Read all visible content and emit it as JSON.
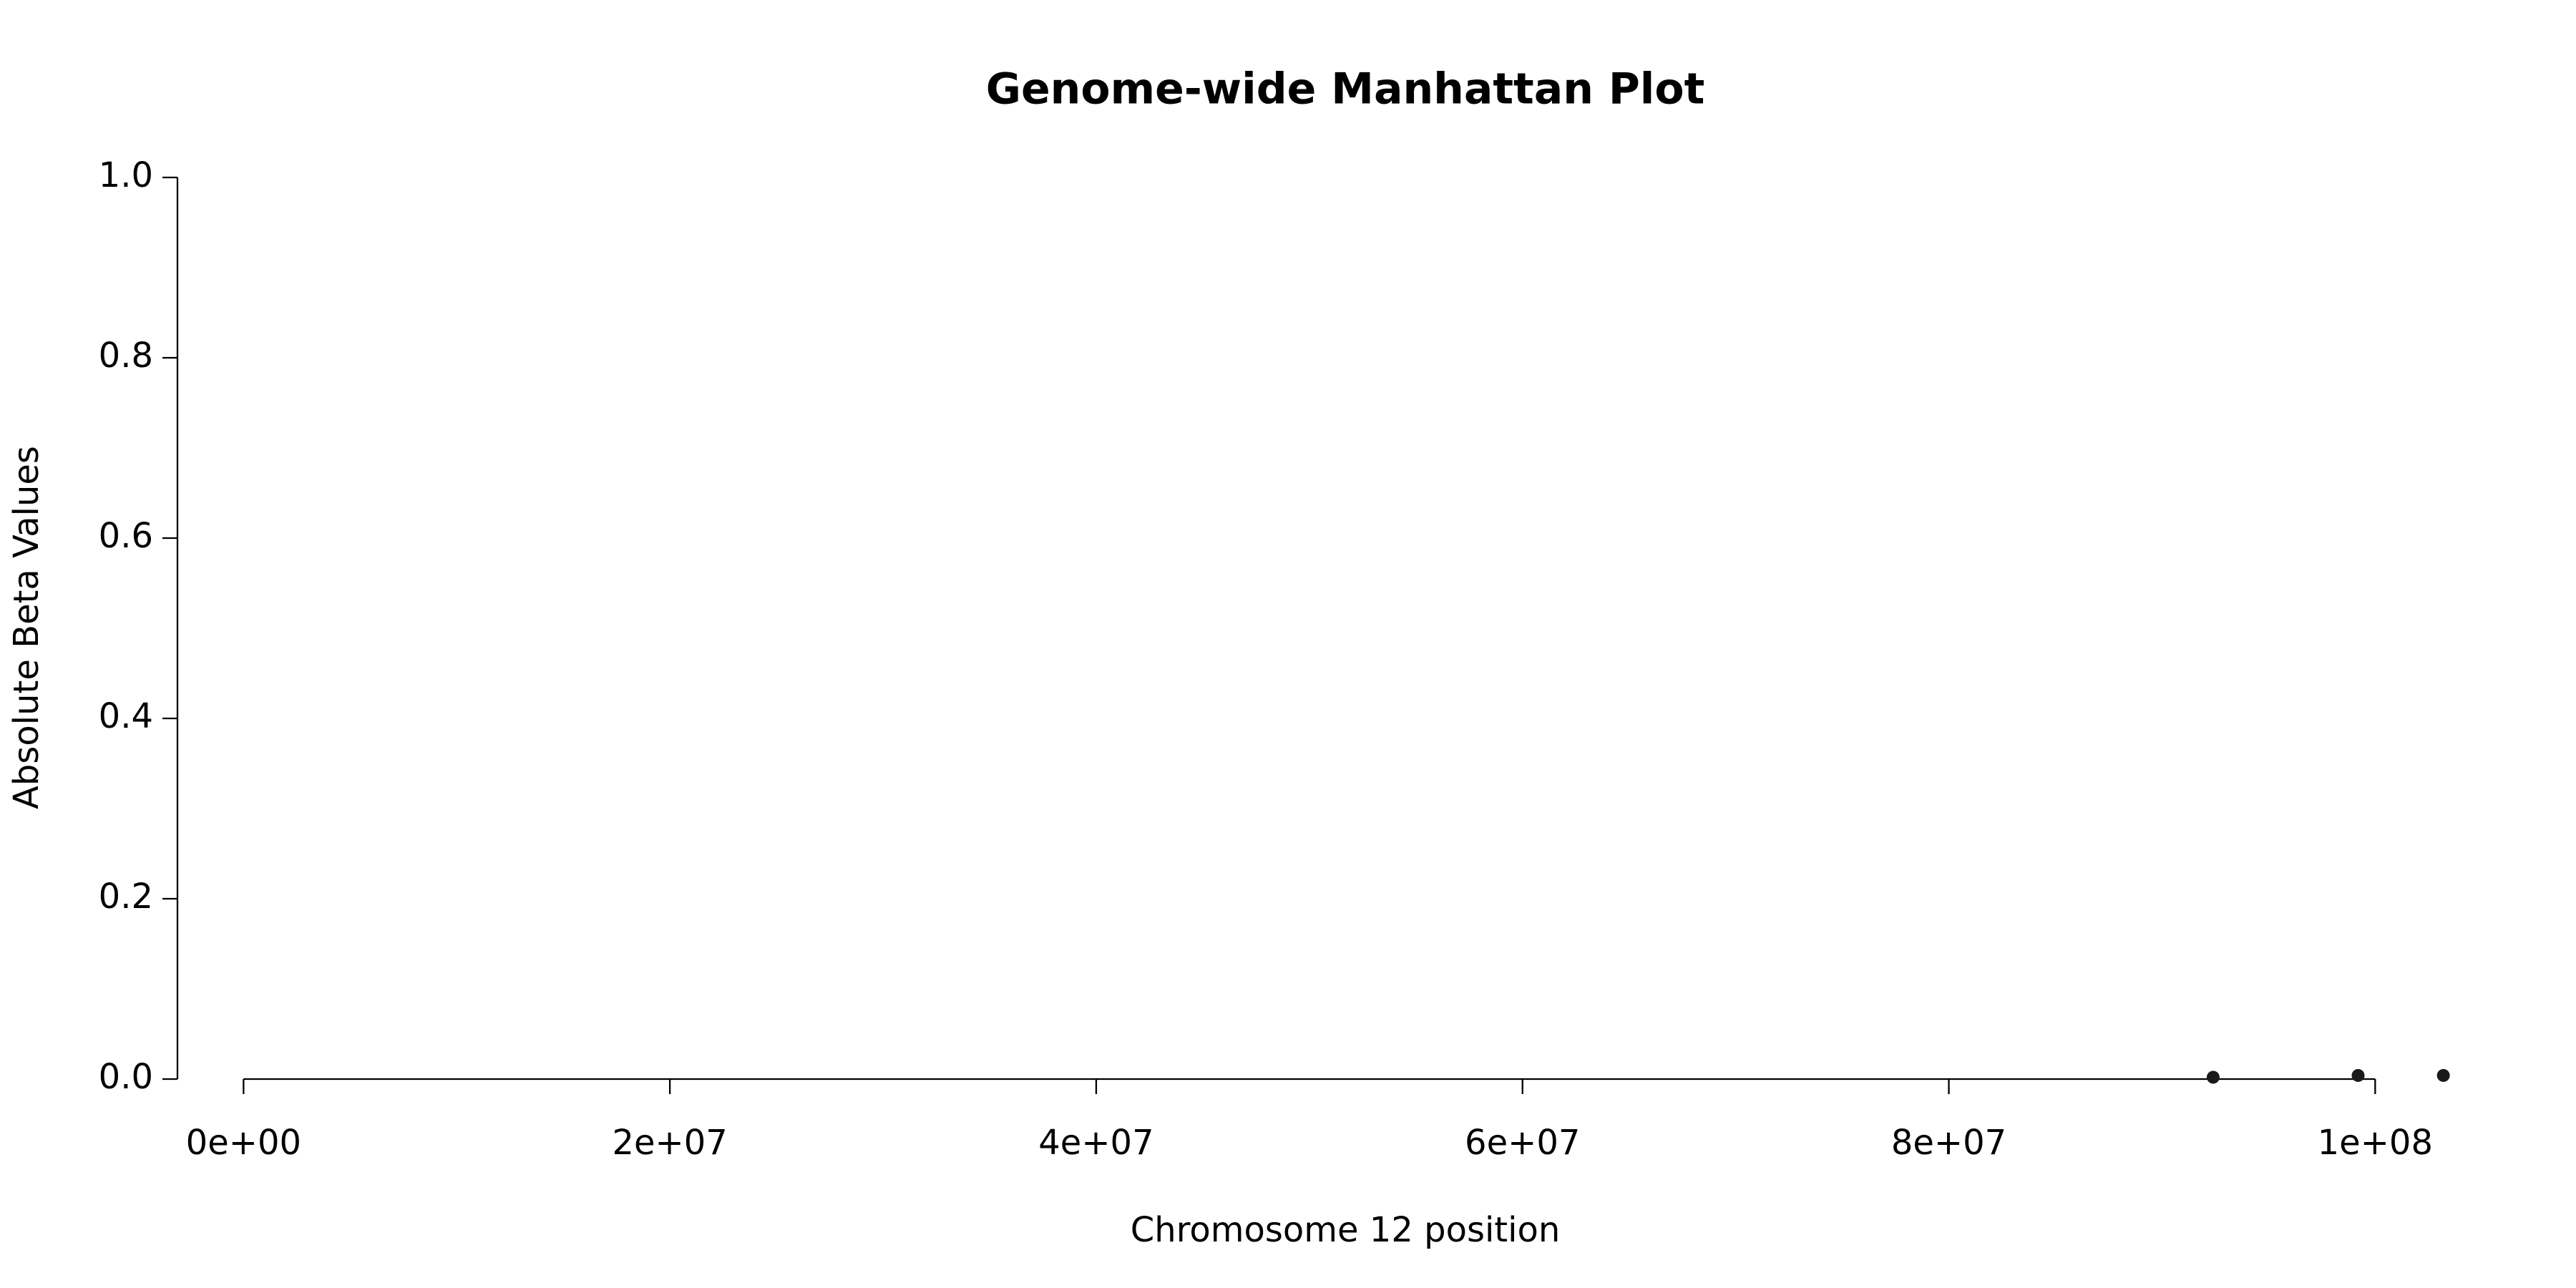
{
  "chart_data": {
    "type": "scatter",
    "title": "Genome-wide Manhattan Plot",
    "x_label": "Chromosome 12 position",
    "y_label": "Absolute Beta Values",
    "x": [
      92400000,
      99200000,
      103200000
    ],
    "values": [
      0.002,
      0.004,
      0.004
    ],
    "color": "#1a1a1a",
    "xlim": [
      -3100000,
      106300000
    ],
    "ylim": [
      0,
      1.0
    ],
    "xticks": [
      {
        "value": 0,
        "label": "0e+00"
      },
      {
        "value": 20000000,
        "label": "2e+07"
      },
      {
        "value": 40000000,
        "label": "4e+07"
      },
      {
        "value": 60000000,
        "label": "6e+07"
      },
      {
        "value": 80000000,
        "label": "8e+07"
      },
      {
        "value": 100000000,
        "label": "1e+08"
      }
    ],
    "yticks": [
      {
        "value": 0,
        "label": "0.0"
      },
      0.2,
      0.4,
      0.6,
      0.8,
      {
        "value": 1,
        "label": "1.0"
      }
    ],
    "grid": false
  }
}
